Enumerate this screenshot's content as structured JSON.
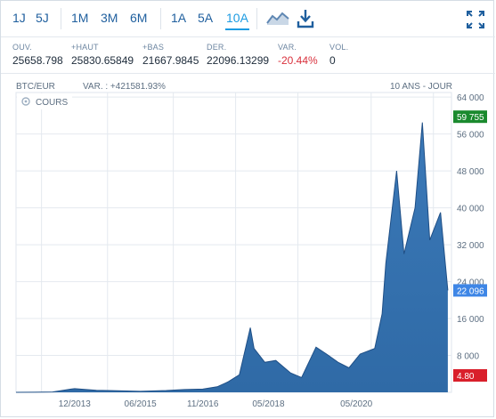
{
  "toolbar": {
    "periods": [
      {
        "id": "1d",
        "label": "1J"
      },
      {
        "id": "5d",
        "label": "5J"
      },
      {
        "id": "1m",
        "label": "1M"
      },
      {
        "id": "3m",
        "label": "3M"
      },
      {
        "id": "6m",
        "label": "6M"
      },
      {
        "id": "1y",
        "label": "1A"
      },
      {
        "id": "5y",
        "label": "5A"
      },
      {
        "id": "10y",
        "label": "10A"
      }
    ],
    "active_period": "10A",
    "icons": [
      "chart-type-icon",
      "download-icon",
      "fullscreen-icon"
    ]
  },
  "stats": [
    {
      "label": "OUV.",
      "value": "25658.798"
    },
    {
      "label": "+HAUT",
      "value": "25830.65849"
    },
    {
      "label": "+BAS",
      "value": "21667.9845"
    },
    {
      "label": "DER.",
      "value": "22096.13299"
    },
    {
      "label": "VAR.",
      "value": "-20.44%"
    },
    {
      "label": "VOL.",
      "value": "0"
    }
  ],
  "chart_header": {
    "symbol": "BTC/EUR",
    "variation": "VAR. : +421581.93%",
    "range": "10 ANS - JOUR",
    "legend_label": "COURS"
  },
  "colors": {
    "accent": "#1c9be2",
    "link": "#1f5f9e",
    "area_fill": "#2f6aa6",
    "line": "#1f4f86",
    "max_badge": "#1a8a2e",
    "last_badge": "#3e86e6",
    "min_badge": "#d91f2b"
  },
  "chart_data": {
    "type": "area",
    "title": "",
    "series": [
      {
        "x": [
          "2012-08",
          "2013-01",
          "2013-06",
          "2013-11",
          "2013-12",
          "2014-06",
          "2015-01",
          "2015-06",
          "2016-01",
          "2016-06",
          "2016-11",
          "2017-03",
          "2017-06",
          "2017-09",
          "2017-12",
          "2018-01",
          "2018-04",
          "2018-07",
          "2018-11",
          "2019-02",
          "2019-06",
          "2019-09",
          "2019-12",
          "2020-03",
          "2020-06",
          "2020-10",
          "2020-12",
          "2021-01",
          "2021-04",
          "2021-06",
          "2021-09",
          "2021-11",
          "2022-01",
          "2022-04",
          "2022-06"
        ],
        "y": [
          8,
          10,
          80,
          700,
          800,
          450,
          300,
          220,
          380,
          600,
          700,
          1200,
          2300,
          3800,
          14000,
          9500,
          6500,
          6900,
          4200,
          3200,
          9800,
          8200,
          6500,
          5300,
          8300,
          9500,
          17000,
          28000,
          48000,
          30000,
          40000,
          58500,
          33000,
          39000,
          22096
        ]
      }
    ],
    "x_tick_labels": [
      "12/2013",
      "06/2015",
      "11/2016",
      "05/2018",
      "05/2020"
    ],
    "y_ticks": [
      8000,
      16000,
      24000,
      32000,
      40000,
      48000,
      56000,
      64000
    ],
    "y_tick_labels": [
      "8 000",
      "16 000",
      "24 000",
      "32 000",
      "40 000",
      "48 000",
      "56 000",
      "64 000"
    ],
    "ylim": [
      0,
      65000
    ],
    "grid": true,
    "badges": [
      {
        "kind": "max",
        "label": "59 755",
        "value": 59755
      },
      {
        "kind": "last",
        "label": "22 096",
        "value": 22096
      },
      {
        "kind": "min",
        "label": "4.80",
        "value": 4.8
      }
    ]
  }
}
